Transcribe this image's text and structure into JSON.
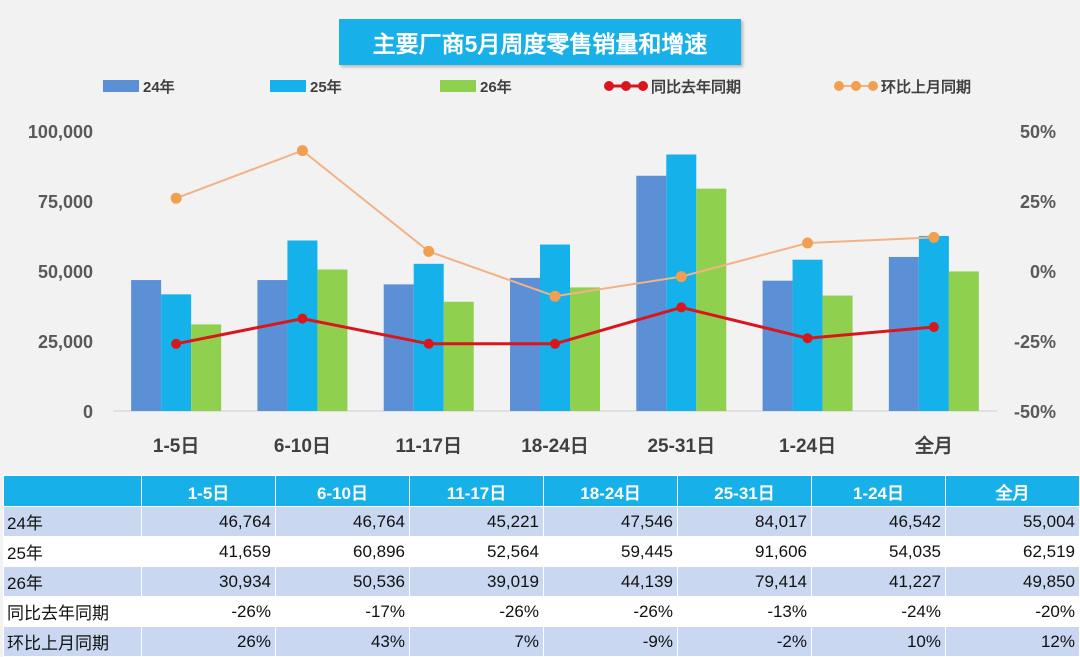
{
  "chart_data": {
    "type": "bar",
    "title": "主要厂商5月周度零售销量和增速",
    "categories": [
      "1-5日",
      "6-10日",
      "11-17日",
      "18-24日",
      "25-31日",
      "1-24日",
      "全月"
    ],
    "series": [
      {
        "name": "24年",
        "type": "bar",
        "axis": "left",
        "color": "#5b8fd6",
        "values": [
          46764,
          46764,
          45221,
          47546,
          84017,
          46542,
          55004
        ]
      },
      {
        "name": "25年",
        "type": "bar",
        "axis": "left",
        "color": "#14b1ea",
        "values": [
          41659,
          60896,
          52564,
          59445,
          91606,
          54035,
          62519
        ]
      },
      {
        "name": "26年",
        "type": "bar",
        "axis": "left",
        "color": "#8fd14f",
        "values": [
          30934,
          50536,
          39019,
          44139,
          79414,
          41227,
          49850
        ]
      },
      {
        "name": "同比去年同期",
        "type": "line",
        "axis": "right",
        "color": "#d9161b",
        "values": [
          -26,
          -17,
          -26,
          -26,
          -13,
          -24,
          -20
        ]
      },
      {
        "name": "环比上月同期",
        "type": "line",
        "axis": "right",
        "color": "#f4b183",
        "markerColor": "#f0a050",
        "values": [
          26,
          43,
          7,
          -9,
          -2,
          10,
          12
        ]
      }
    ],
    "ylim": [
      0,
      100000
    ],
    "yticks": [
      "100,000",
      "75,000",
      "50,000",
      "25,000",
      "0"
    ],
    "y2lim": [
      -50,
      50
    ],
    "y2ticks": [
      "50%",
      "25%",
      "0%",
      "-25%",
      "-50%"
    ],
    "legend": "top",
    "grid": false
  },
  "table": {
    "header": [
      "",
      "1-5日",
      "6-10日",
      "11-17日",
      "18-24日",
      "25-31日",
      "1-24日",
      "全月"
    ],
    "rows": [
      {
        "label": "24年",
        "cells": [
          "46,764",
          "46,764",
          "45,221",
          "47,546",
          "84,017",
          "46,542",
          "55,004"
        ]
      },
      {
        "label": "25年",
        "cells": [
          "41,659",
          "60,896",
          "52,564",
          "59,445",
          "91,606",
          "54,035",
          "62,519"
        ]
      },
      {
        "label": "26年",
        "cells": [
          "30,934",
          "50,536",
          "39,019",
          "44,139",
          "79,414",
          "41,227",
          "49,850"
        ]
      },
      {
        "label": "同比去年同期",
        "cells": [
          "-26%",
          "-17%",
          "-26%",
          "-26%",
          "-13%",
          "-24%",
          "-20%"
        ]
      },
      {
        "label": "环比上月同期",
        "cells": [
          "26%",
          "43%",
          "7%",
          "-9%",
          "-2%",
          "10%",
          "12%"
        ]
      }
    ]
  }
}
